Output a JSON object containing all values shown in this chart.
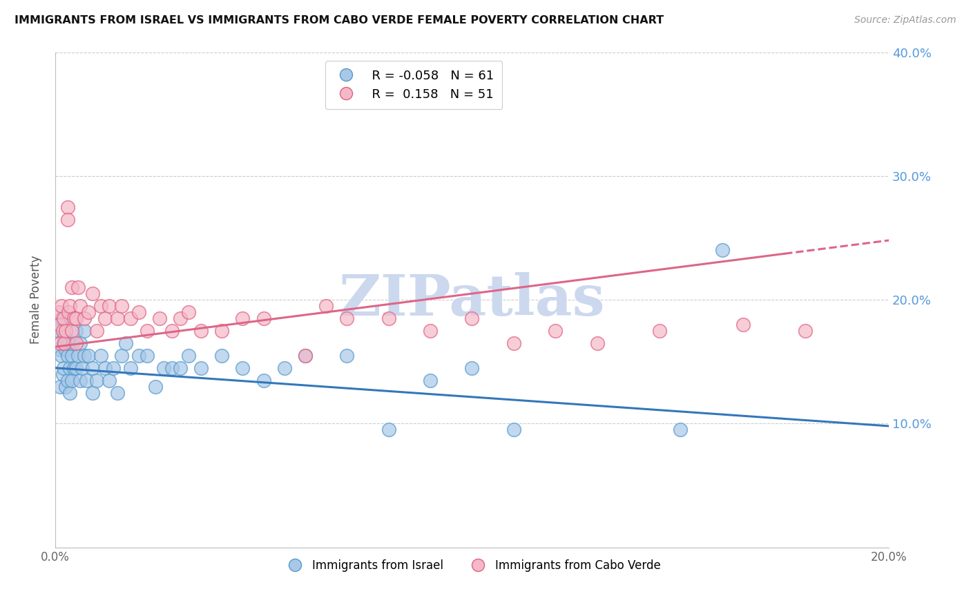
{
  "title": "IMMIGRANTS FROM ISRAEL VS IMMIGRANTS FROM CABO VERDE FEMALE POVERTY CORRELATION CHART",
  "source": "Source: ZipAtlas.com",
  "ylabel": "Female Poverty",
  "xlim": [
    0.0,
    0.2
  ],
  "ylim": [
    0.0,
    0.4
  ],
  "xticks": [
    0.0,
    0.05,
    0.1,
    0.15,
    0.2
  ],
  "xtick_labels": [
    "0.0%",
    "",
    "",
    "",
    "20.0%"
  ],
  "yticks": [
    0.0,
    0.1,
    0.2,
    0.3,
    0.4
  ],
  "ytick_labels_right": [
    "",
    "10.0%",
    "20.0%",
    "30.0%",
    "40.0%"
  ],
  "color_blue_fill": "#a8c8e8",
  "color_blue_edge": "#5599cc",
  "color_pink_fill": "#f4b8c8",
  "color_pink_edge": "#e06080",
  "color_trend_blue": "#3377bb",
  "color_trend_pink": "#dd6688",
  "color_axis_right": "#5599dd",
  "watermark": "ZIPatlas",
  "watermark_color": "#ccd8ee",
  "legend_line1": "R = -0.058   N = 61",
  "legend_line2": "R =  0.158   N = 51",
  "israel_x": [
    0.0008,
    0.001,
    0.0012,
    0.0015,
    0.0015,
    0.0018,
    0.002,
    0.002,
    0.0022,
    0.0025,
    0.0025,
    0.003,
    0.003,
    0.0032,
    0.0035,
    0.0035,
    0.004,
    0.004,
    0.0042,
    0.0045,
    0.005,
    0.005,
    0.0055,
    0.006,
    0.006,
    0.0065,
    0.007,
    0.007,
    0.0075,
    0.008,
    0.009,
    0.009,
    0.01,
    0.011,
    0.012,
    0.013,
    0.014,
    0.015,
    0.016,
    0.017,
    0.018,
    0.02,
    0.022,
    0.024,
    0.026,
    0.028,
    0.03,
    0.032,
    0.035,
    0.04,
    0.045,
    0.05,
    0.055,
    0.06,
    0.07,
    0.08,
    0.09,
    0.1,
    0.11,
    0.15,
    0.16
  ],
  "israel_y": [
    0.175,
    0.16,
    0.13,
    0.155,
    0.185,
    0.14,
    0.165,
    0.145,
    0.17,
    0.16,
    0.13,
    0.155,
    0.135,
    0.165,
    0.145,
    0.125,
    0.155,
    0.135,
    0.165,
    0.145,
    0.145,
    0.175,
    0.155,
    0.135,
    0.165,
    0.145,
    0.155,
    0.175,
    0.135,
    0.155,
    0.145,
    0.125,
    0.135,
    0.155,
    0.145,
    0.135,
    0.145,
    0.125,
    0.155,
    0.165,
    0.145,
    0.155,
    0.155,
    0.13,
    0.145,
    0.145,
    0.145,
    0.155,
    0.145,
    0.155,
    0.145,
    0.135,
    0.145,
    0.155,
    0.155,
    0.095,
    0.135,
    0.145,
    0.095,
    0.095,
    0.24
  ],
  "caboverde_x": [
    0.0008,
    0.001,
    0.0012,
    0.0015,
    0.0018,
    0.002,
    0.0022,
    0.0025,
    0.003,
    0.003,
    0.0032,
    0.0035,
    0.004,
    0.004,
    0.0045,
    0.005,
    0.005,
    0.0055,
    0.006,
    0.007,
    0.008,
    0.009,
    0.01,
    0.011,
    0.012,
    0.013,
    0.015,
    0.016,
    0.018,
    0.02,
    0.022,
    0.025,
    0.028,
    0.03,
    0.032,
    0.035,
    0.04,
    0.045,
    0.05,
    0.06,
    0.065,
    0.07,
    0.08,
    0.09,
    0.1,
    0.11,
    0.12,
    0.13,
    0.145,
    0.165,
    0.18
  ],
  "caboverde_y": [
    0.19,
    0.18,
    0.165,
    0.195,
    0.175,
    0.185,
    0.165,
    0.175,
    0.275,
    0.265,
    0.19,
    0.195,
    0.21,
    0.175,
    0.185,
    0.185,
    0.165,
    0.21,
    0.195,
    0.185,
    0.19,
    0.205,
    0.175,
    0.195,
    0.185,
    0.195,
    0.185,
    0.195,
    0.185,
    0.19,
    0.175,
    0.185,
    0.175,
    0.185,
    0.19,
    0.175,
    0.175,
    0.185,
    0.185,
    0.155,
    0.195,
    0.185,
    0.185,
    0.175,
    0.185,
    0.165,
    0.175,
    0.165,
    0.175,
    0.18,
    0.175
  ],
  "trend_blue_x0": 0.0,
  "trend_blue_y0": 0.145,
  "trend_blue_x1": 0.2,
  "trend_blue_y1": 0.098,
  "trend_pink_x0": 0.0,
  "trend_pink_y0": 0.162,
  "trend_pink_x1": 0.2,
  "trend_pink_y1": 0.248,
  "trend_pink_solid_end": 0.175
}
